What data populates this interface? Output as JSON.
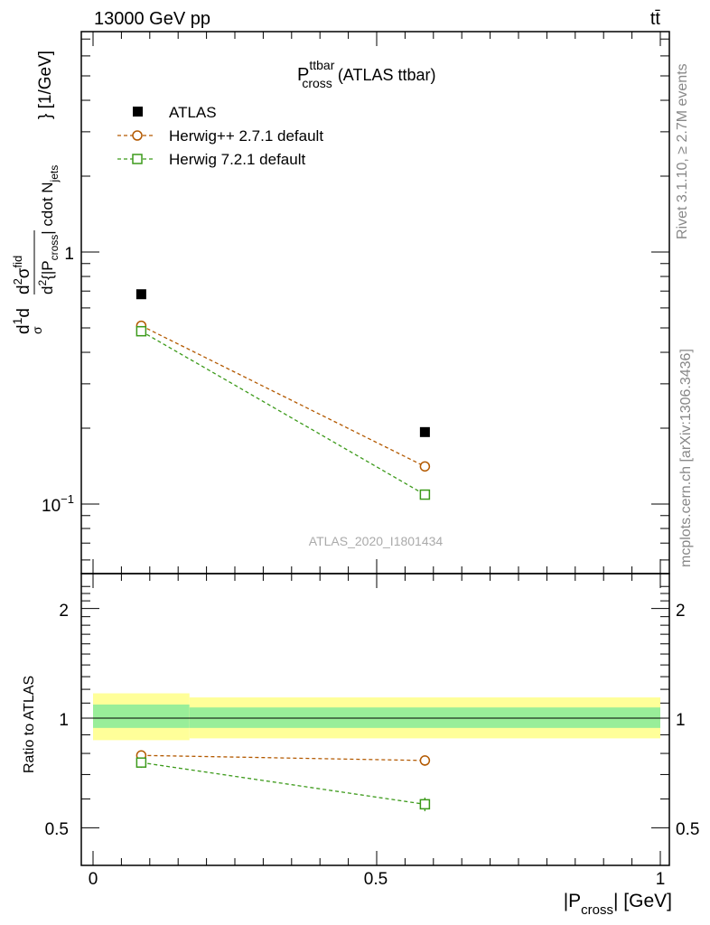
{
  "header": {
    "energy_label": "13000 GeV pp",
    "process_label": "tt̄"
  },
  "side_labels": {
    "rivet": "Rivet 3.1.10, ≥ 2.7M events",
    "mcplots": "mcplots.cern.ch [arXiv:1306.3436]"
  },
  "main_plot": {
    "title_main": "P",
    "title_sup": "ttbar",
    "title_sub": "cross",
    "title_rest": "(ATLAS ttbar)",
    "watermark": "ATLAS_2020_I1801434",
    "ylabel_unit": "} [1/GeV]",
    "y_tick_1": "1",
    "y_tick_01_base": "10",
    "y_tick_01_exp": "−1"
  },
  "ratio_plot": {
    "ylabel": "Ratio to ATLAS",
    "y_ticks": [
      "2",
      "1",
      "0.5"
    ],
    "x_ticks": [
      "0",
      "0.5",
      "1"
    ]
  },
  "xlabel": {
    "pre": "|P",
    "sub": "cross",
    "post": "| [GeV]"
  },
  "colors": {
    "data": "#000000",
    "herwigpp": "#b35900",
    "herwig7": "#3c9a1a",
    "band_outer": "#ffff99",
    "band_inner": "#99ee99"
  },
  "chart_data": [
    {
      "type": "scatter",
      "xlim": [
        0,
        1
      ],
      "ylim": [
        0.055,
        7.5
      ],
      "log_y": true,
      "legend_position": "top-left",
      "series": [
        {
          "name": "ATLAS",
          "style": "filled-square",
          "x": [
            0.085,
            0.585
          ],
          "y": [
            0.68,
            0.193
          ]
        },
        {
          "name": "Herwig++ 2.7.1 default",
          "style": "open-circle-dashed",
          "x": [
            0.085,
            0.585
          ],
          "y": [
            0.51,
            0.141
          ]
        },
        {
          "name": "Herwig 7.2.1 default",
          "style": "open-square-dashed",
          "x": [
            0.085,
            0.585
          ],
          "y": [
            0.485,
            0.109
          ]
        }
      ]
    },
    {
      "type": "scatter",
      "ylabel": "Ratio to ATLAS",
      "xlim": [
        0,
        1
      ],
      "ylim": [
        0.4,
        2.4
      ],
      "log_y": true,
      "reference_line": 1,
      "bands": [
        {
          "x_range": [
            0,
            0.17
          ],
          "outer": [
            0.87,
            1.17
          ],
          "inner": [
            0.94,
            1.09
          ]
        },
        {
          "x_range": [
            0.17,
            1
          ],
          "outer": [
            0.88,
            1.14
          ],
          "inner": [
            0.94,
            1.07
          ]
        }
      ],
      "series": [
        {
          "name": "Herwig++ 2.7.1 default",
          "x": [
            0.085,
            0.585
          ],
          "y": [
            0.79,
            0.765
          ],
          "err": [
            0.025,
            0.025
          ]
        },
        {
          "name": "Herwig 7.2.1 default",
          "x": [
            0.085,
            0.585
          ],
          "y": [
            0.755,
            0.58
          ],
          "err": [
            0.025,
            0.025
          ]
        }
      ]
    }
  ]
}
